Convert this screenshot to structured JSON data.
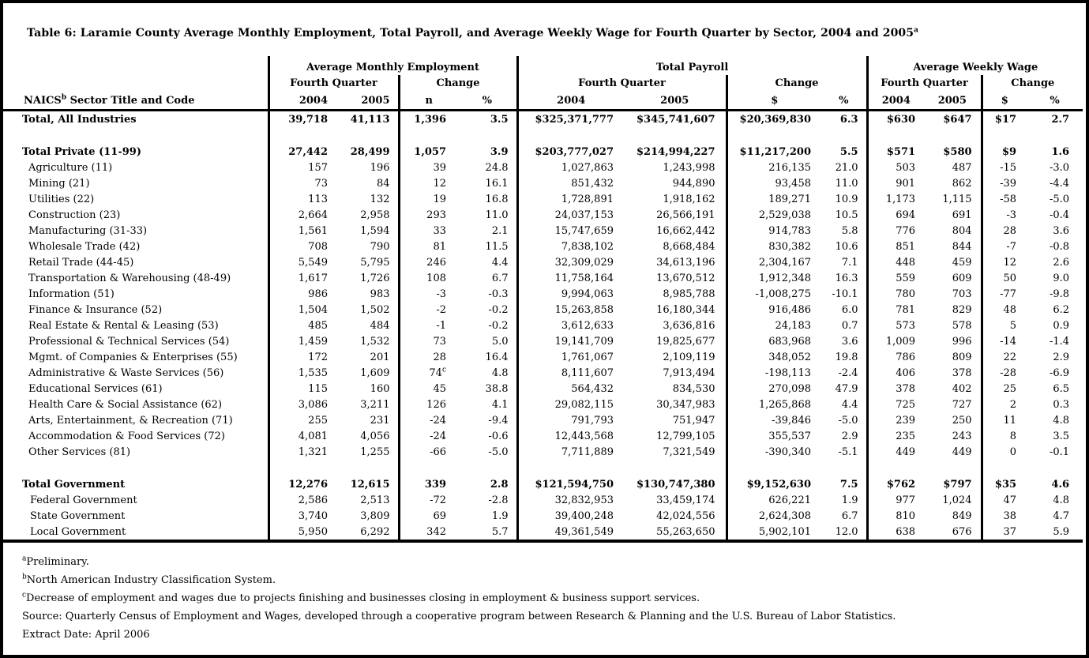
{
  "title": {
    "text": "Table 6: Laramie County Average Monthly Employment, Total Payroll, and Average Weekly Wage for Fourth Quarter by Sector, 2004 and 2005",
    "sup": "a"
  },
  "table": {
    "groups": [
      "Average Monthly Employment",
      "Total Payroll",
      "Average Weekly Wage"
    ],
    "subheaders": {
      "fq": "Fourth Quarter",
      "change": "Change"
    },
    "sector_header": {
      "prefix": "NAICS",
      "sup": "b",
      "rest": " Sector Title and Code"
    },
    "col_headers": [
      "2004",
      "2005",
      "n",
      "%",
      "2004",
      "2005",
      "$",
      "%",
      "2004",
      "2005",
      "$",
      "%"
    ],
    "rows": [
      {
        "label": "Total, All Industries",
        "bold": true,
        "indent": 0,
        "values": [
          "39,718",
          "41,113",
          "1,396",
          "3.5",
          "$325,371,777",
          "$345,741,607",
          "$20,369,830",
          "6.3",
          "$630",
          "$647",
          "$17",
          "2.7"
        ]
      },
      {
        "blank": true
      },
      {
        "label": "Total Private (11-99)",
        "bold": true,
        "indent": 0,
        "values": [
          "27,442",
          "28,499",
          "1,057",
          "3.9",
          "$203,777,027",
          "$214,994,227",
          "$11,217,200",
          "5.5",
          "$571",
          "$580",
          "$9",
          "1.6"
        ]
      },
      {
        "label": "Agriculture (11)",
        "indent": 1,
        "values": [
          "157",
          "196",
          "39",
          "24.8",
          "1,027,863",
          "1,243,998",
          "216,135",
          "21.0",
          "503",
          "487",
          "-15",
          "-3.0"
        ]
      },
      {
        "label": "Mining (21)",
        "indent": 1,
        "values": [
          "73",
          "84",
          "12",
          "16.1",
          "851,432",
          "944,890",
          "93,458",
          "11.0",
          "901",
          "862",
          "-39",
          "-4.4"
        ]
      },
      {
        "label": "Utilities (22)",
        "indent": 1,
        "values": [
          "113",
          "132",
          "19",
          "16.8",
          "1,728,891",
          "1,918,162",
          "189,271",
          "10.9",
          "1,173",
          "1,115",
          "-58",
          "-5.0"
        ]
      },
      {
        "label": "Construction (23)",
        "indent": 1,
        "values": [
          "2,664",
          "2,958",
          "293",
          "11.0",
          "24,037,153",
          "26,566,191",
          "2,529,038",
          "10.5",
          "694",
          "691",
          "-3",
          "-0.4"
        ]
      },
      {
        "label": "Manufacturing (31-33)",
        "indent": 1,
        "values": [
          "1,561",
          "1,594",
          "33",
          "2.1",
          "15,747,659",
          "16,662,442",
          "914,783",
          "5.8",
          "776",
          "804",
          "28",
          "3.6"
        ]
      },
      {
        "label": "Wholesale Trade (42)",
        "indent": 1,
        "values": [
          "708",
          "790",
          "81",
          "11.5",
          "7,838,102",
          "8,668,484",
          "830,382",
          "10.6",
          "851",
          "844",
          "-7",
          "-0.8"
        ]
      },
      {
        "label": "Retail Trade (44-45)",
        "indent": 1,
        "values": [
          "5,549",
          "5,795",
          "246",
          "4.4",
          "32,309,029",
          "34,613,196",
          "2,304,167",
          "7.1",
          "448",
          "459",
          "12",
          "2.6"
        ]
      },
      {
        "label": "Transportation & Warehousing (48-49)",
        "indent": 1,
        "values": [
          "1,617",
          "1,726",
          "108",
          "6.7",
          "11,758,164",
          "13,670,512",
          "1,912,348",
          "16.3",
          "559",
          "609",
          "50",
          "9.0"
        ]
      },
      {
        "label": "Information (51)",
        "indent": 1,
        "values": [
          "986",
          "983",
          "-3",
          "-0.3",
          "9,994,063",
          "8,985,788",
          "-1,008,275",
          "-10.1",
          "780",
          "703",
          "-77",
          "-9.8"
        ]
      },
      {
        "label": "Finance & Insurance (52)",
        "indent": 1,
        "values": [
          "1,504",
          "1,502",
          "-2",
          "-0.2",
          "15,263,858",
          "16,180,344",
          "916,486",
          "6.0",
          "781",
          "829",
          "48",
          "6.2"
        ]
      },
      {
        "label": "Real Estate & Rental & Leasing (53)",
        "indent": 1,
        "values": [
          "485",
          "484",
          "-1",
          "-0.2",
          "3,612,633",
          "3,636,816",
          "24,183",
          "0.7",
          "573",
          "578",
          "5",
          "0.9"
        ]
      },
      {
        "label": "Professional & Technical Services (54)",
        "indent": 1,
        "values": [
          "1,459",
          "1,532",
          "73",
          "5.0",
          "19,141,709",
          "19,825,677",
          "683,968",
          "3.6",
          "1,009",
          "996",
          "-14",
          "-1.4"
        ]
      },
      {
        "label": "Mgmt. of Companies & Enterprises (55)",
        "indent": 1,
        "values": [
          "172",
          "201",
          "28",
          "16.4",
          "1,761,067",
          "2,109,119",
          "348,052",
          "19.8",
          "786",
          "809",
          "22",
          "2.9"
        ]
      },
      {
        "label": "Administrative & Waste Services (56)",
        "indent": 1,
        "values": [
          "1,535",
          "1,609",
          "74^c",
          "4.8",
          "8,111,607",
          "7,913,494",
          "-198,113",
          "-2.4",
          "406",
          "378",
          "-28",
          "-6.9"
        ]
      },
      {
        "label": "Educational Services (61)",
        "indent": 1,
        "values": [
          "115",
          "160",
          "45",
          "38.8",
          "564,432",
          "834,530",
          "270,098",
          "47.9",
          "378",
          "402",
          "25",
          "6.5"
        ]
      },
      {
        "label": "Health Care & Social Assistance (62)",
        "indent": 1,
        "values": [
          "3,086",
          "3,211",
          "126",
          "4.1",
          "29,082,115",
          "30,347,983",
          "1,265,868",
          "4.4",
          "725",
          "727",
          "2",
          "0.3"
        ]
      },
      {
        "label": "Arts, Entertainment, & Recreation (71)",
        "indent": 1,
        "values": [
          "255",
          "231",
          "-24",
          "-9.4",
          "791,793",
          "751,947",
          "-39,846",
          "-5.0",
          "239",
          "250",
          "11",
          "4.8"
        ]
      },
      {
        "label": "Accommodation & Food Services (72)",
        "indent": 1,
        "values": [
          "4,081",
          "4,056",
          "-24",
          "-0.6",
          "12,443,568",
          "12,799,105",
          "355,537",
          "2.9",
          "235",
          "243",
          "8",
          "3.5"
        ]
      },
      {
        "label": "Other Services (81)",
        "indent": 1,
        "values": [
          "1,321",
          "1,255",
          "-66",
          "-5.0",
          "7,711,889",
          "7,321,549",
          "-390,340",
          "-5.1",
          "449",
          "449",
          "0",
          "-0.1"
        ]
      },
      {
        "blank": true
      },
      {
        "label": "Total Government",
        "bold": true,
        "indent": 0,
        "values": [
          "12,276",
          "12,615",
          "339",
          "2.8",
          "$121,594,750",
          "$130,747,380",
          "$9,152,630",
          "7.5",
          "$762",
          "$797",
          "$35",
          "4.6"
        ]
      },
      {
        "label": "Federal Government",
        "indent": 2,
        "values": [
          "2,586",
          "2,513",
          "-72",
          "-2.8",
          "32,832,953",
          "33,459,174",
          "626,221",
          "1.9",
          "977",
          "1,024",
          "47",
          "4.8"
        ]
      },
      {
        "label": "State Government",
        "indent": 2,
        "values": [
          "3,740",
          "3,809",
          "69",
          "1.9",
          "39,400,248",
          "42,024,556",
          "2,624,308",
          "6.7",
          "810",
          "849",
          "38",
          "4.7"
        ]
      },
      {
        "label": "Local Government",
        "indent": 2,
        "values": [
          "5,950",
          "6,292",
          "342",
          "5.7",
          "49,361,549",
          "55,263,650",
          "5,902,101",
          "12.0",
          "638",
          "676",
          "37",
          "5.9"
        ]
      }
    ]
  },
  "footnotes": [
    {
      "sup": "a",
      "text": "Preliminary."
    },
    {
      "sup": "b",
      "text": "North American Industry Classification System."
    },
    {
      "sup": "c",
      "text": "Decrease of employment and wages due to projects finishing and businesses closing in employment & business support services."
    },
    {
      "sup": "",
      "text": "Source: Quarterly Census of Employment and Wages, developed through a cooperative program between Research & Planning and the U.S. Bureau of Labor Statistics."
    },
    {
      "sup": "",
      "text": "Extract Date: April 2006"
    }
  ]
}
